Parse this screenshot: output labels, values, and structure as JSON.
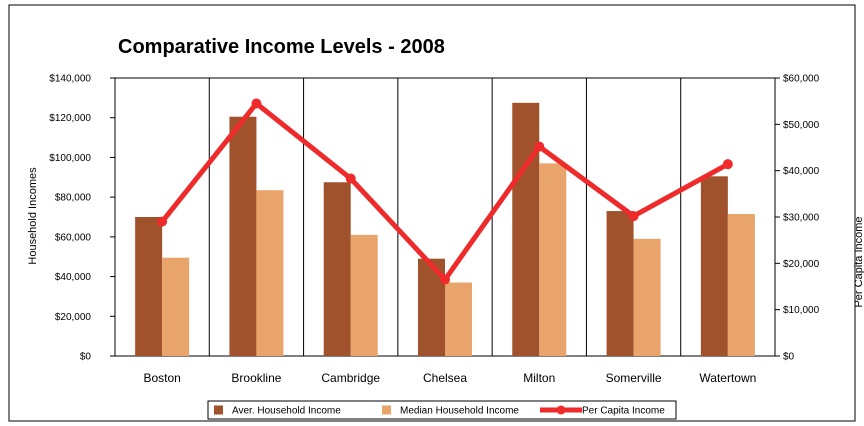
{
  "chart_data": {
    "type": "bar",
    "title": "Comparative Income Levels - 2008",
    "categories": [
      "Boston",
      "Brookline",
      "Cambridge",
      "Chelsea",
      "Milton",
      "Somerville",
      "Watertown"
    ],
    "ylabel": "Household Incomes",
    "y2label": "Per Capita Income",
    "ylim": [
      0,
      140000
    ],
    "y2lim": [
      0,
      60000
    ],
    "yticks": [
      "$0",
      "$20,000",
      "$40,000",
      "$60,000",
      "$80,000",
      "$100,000",
      "$120,000",
      "$140,000"
    ],
    "y2ticks": [
      "$0",
      "$10,000",
      "$20,000",
      "$30,000",
      "$40,000",
      "$50,000",
      "$60,000"
    ],
    "series": [
      {
        "name": "Aver. Household Income",
        "type": "bar",
        "axis": "left",
        "color": "#A0522D",
        "values": [
          70000,
          120500,
          87500,
          49000,
          127500,
          73000,
          90500
        ]
      },
      {
        "name": "Median Household Income",
        "type": "bar",
        "axis": "left",
        "color": "#E8A46A",
        "values": [
          49500,
          83500,
          61000,
          37000,
          97000,
          59000,
          71500
        ]
      },
      {
        "name": "Per Capita Income",
        "type": "line",
        "axis": "right",
        "color": "#EE2A2A",
        "values": [
          29000,
          54500,
          38300,
          16500,
          45200,
          30200,
          41400
        ]
      }
    ],
    "grid": "vertical category separators",
    "legend": "bottom"
  }
}
